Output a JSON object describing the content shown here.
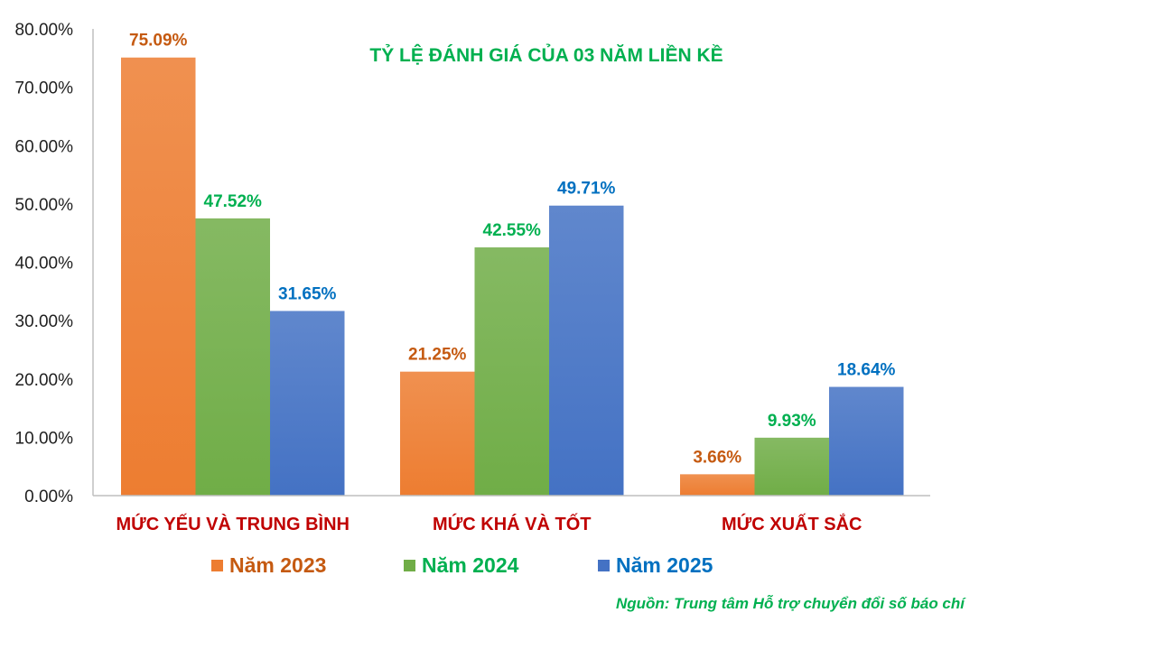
{
  "chart_data": {
    "type": "bar",
    "title": "TỶ LỆ ĐÁNH GIÁ CỦA 03 NĂM LIỀN KỀ",
    "categories": [
      "MỨC YẾU VÀ TRUNG BÌNH",
      "MỨC KHÁ VÀ TỐT",
      "MỨC XUẤT SẮC"
    ],
    "series": [
      {
        "name": "Năm 2023",
        "values": [
          75.09,
          21.25,
          3.66
        ],
        "labels": [
          "75.09%",
          "21.25%",
          "3.66%"
        ],
        "color": "#ed7d31",
        "label_color": "#c55a11"
      },
      {
        "name": "Năm 2024",
        "values": [
          47.52,
          42.55,
          9.93
        ],
        "labels": [
          "47.52%",
          "42.55%",
          "9.93%"
        ],
        "color": "#70ad47",
        "label_color": "#00b050"
      },
      {
        "name": "Năm 2025",
        "values": [
          31.65,
          49.71,
          18.64
        ],
        "labels": [
          "31.65%",
          "49.71%",
          "18.64%"
        ],
        "color": "#4472c4",
        "label_color": "#0070c0"
      }
    ],
    "yticks": [
      "0.00%",
      "10.00%",
      "20.00%",
      "30.00%",
      "40.00%",
      "50.00%",
      "60.00%",
      "70.00%",
      "80.00%"
    ],
    "ylim": [
      0,
      80
    ],
    "xlabel": "",
    "ylabel": "",
    "legend_position": "bottom",
    "grid": false
  },
  "colors": {
    "title": "#00b050",
    "category_label": "#c00000",
    "source": "#00b050",
    "axis_line": "#bfbfbf"
  },
  "source_note": "Nguồn: Trung tâm Hỗ trợ chuyển đổi số báo chí"
}
